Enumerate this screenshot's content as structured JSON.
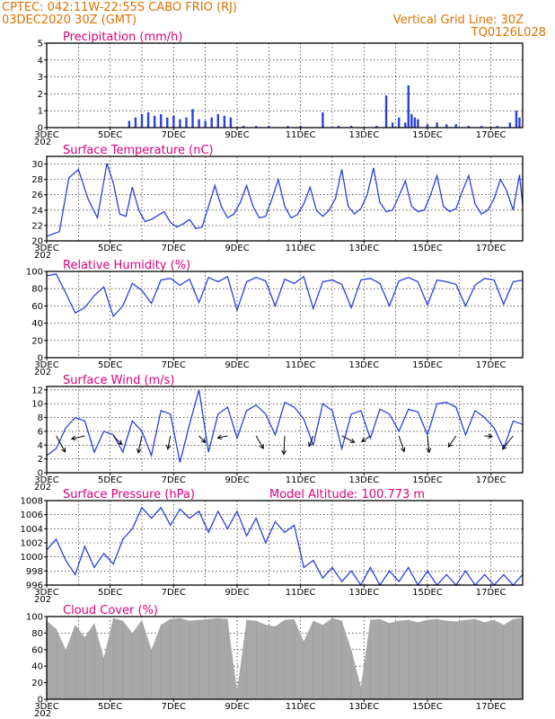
{
  "header": {
    "line1": "CPTEC:   042:11W-22:55S   CABO FRIO (RJ)",
    "line2": "03DEC2020 30Z (GMT)",
    "grid_note": "Vertical Grid Line: 30Z",
    "code": "TQ0126L028"
  },
  "panels": [
    {
      "id": "precip",
      "title": "Precipitation (mm/h)",
      "yticks": [
        "5",
        "4",
        "3",
        "2",
        "1",
        "0"
      ]
    },
    {
      "id": "temp",
      "title": "Surface Temperature (nC)",
      "yticks": [
        "30",
        "28",
        "26",
        "24",
        "22",
        "20"
      ]
    },
    {
      "id": "rh",
      "title": "Relative Humidity (%)",
      "yticks": [
        "100",
        "80",
        "60",
        "40",
        "20",
        "0"
      ]
    },
    {
      "id": "wind",
      "title": "Surface Wind (m/s)",
      "yticks": [
        "12",
        "10",
        "8",
        "6",
        "4",
        "2",
        "0"
      ]
    },
    {
      "id": "pres",
      "title": "Surface Pressure (hPa)",
      "extra": "Model Altitude: 100.773 m",
      "yticks": [
        "1008",
        "1006",
        "1004",
        "1002",
        "1000",
        "998",
        "996"
      ]
    },
    {
      "id": "cloud",
      "title": "Cloud Cover (%)",
      "yticks": [
        "100",
        "80",
        "60",
        "40",
        "20",
        "0"
      ]
    }
  ],
  "x_tick_labels": [
    "3DEC",
    "5DEC",
    "7DEC",
    "9DEC",
    "11DEC",
    "13DEC",
    "15DEC",
    "17DEC"
  ],
  "x_year_stub": "202",
  "colors": {
    "header": "#e07000",
    "titles": "#e0007a",
    "series": "#2a3fe0",
    "cloud": "#a8a8a8"
  },
  "chart_data": [
    {
      "type": "bar",
      "title": "Precipitation (mm/h)",
      "xlim": [
        "03DEC2020 30Z",
        "18DEC2020"
      ],
      "ylim": [
        0,
        5
      ],
      "grid": "dashed",
      "x": [
        5.6,
        5.8,
        6.0,
        6.2,
        6.4,
        6.6,
        6.8,
        7.0,
        7.2,
        7.4,
        7.6,
        7.8,
        8.0,
        8.2,
        8.4,
        8.6,
        8.8,
        9.2,
        9.6,
        10.0,
        10.6,
        11.0,
        11.7,
        12.2,
        12.6,
        13.4,
        13.7,
        13.9,
        14.1,
        14.3,
        14.4,
        14.5,
        14.6,
        14.7,
        15.0,
        15.3,
        15.6,
        15.9,
        16.3,
        16.7,
        17.2,
        17.6,
        17.8,
        17.9
      ],
      "values": [
        0.4,
        0.6,
        0.8,
        0.9,
        0.7,
        0.8,
        0.6,
        0.7,
        0.5,
        0.6,
        1.1,
        0.5,
        0.4,
        0.6,
        0.8,
        0.7,
        0.6,
        0.1,
        0.1,
        0.1,
        0.1,
        0.1,
        0.9,
        0.1,
        0.1,
        0.1,
        1.9,
        0.3,
        0.6,
        0.3,
        2.5,
        0.8,
        0.6,
        0.5,
        0.2,
        0.3,
        0.2,
        0.2,
        0.1,
        0.1,
        0.1,
        0.3,
        1.0,
        0.6
      ]
    },
    {
      "type": "line",
      "title": "Surface Temperature (nC)",
      "ylim": [
        20,
        31
      ],
      "grid": "dashed",
      "x": [
        3.0,
        3.4,
        3.7,
        4.0,
        4.3,
        4.6,
        4.9,
        5.1,
        5.3,
        5.5,
        5.7,
        5.9,
        6.1,
        6.3,
        6.5,
        6.7,
        6.9,
        7.1,
        7.3,
        7.5,
        7.7,
        7.9,
        8.1,
        8.3,
        8.5,
        8.7,
        8.9,
        9.1,
        9.3,
        9.5,
        9.7,
        9.9,
        10.1,
        10.3,
        10.5,
        10.7,
        10.9,
        11.1,
        11.3,
        11.5,
        11.7,
        11.9,
        12.1,
        12.3,
        12.5,
        12.7,
        12.9,
        13.1,
        13.3,
        13.5,
        13.7,
        13.9,
        14.1,
        14.3,
        14.5,
        14.7,
        14.9,
        15.1,
        15.3,
        15.5,
        15.7,
        15.9,
        16.1,
        16.3,
        16.5,
        16.7,
        16.9,
        17.1,
        17.3,
        17.5,
        17.7,
        17.9,
        18.0
      ],
      "values": [
        20.6,
        21.2,
        28.2,
        29.3,
        25.5,
        23.0,
        30.1,
        27.5,
        23.5,
        23.2,
        27.0,
        24.0,
        22.5,
        22.8,
        23.3,
        23.8,
        22.4,
        21.8,
        22.2,
        22.8,
        21.6,
        21.8,
        24.5,
        27.2,
        24.5,
        23.0,
        23.5,
        25.0,
        27.2,
        24.5,
        23.0,
        23.2,
        25.5,
        28.0,
        24.5,
        23.0,
        23.4,
        24.8,
        27.0,
        24.0,
        23.2,
        24.0,
        25.5,
        29.3,
        24.5,
        23.5,
        24.2,
        26.0,
        29.5,
        25.0,
        23.8,
        24.0,
        25.8,
        27.8,
        24.5,
        23.8,
        24.0,
        26.0,
        28.5,
        24.5,
        23.8,
        24.2,
        26.5,
        28.5,
        24.8,
        23.5,
        24.0,
        25.5,
        28.0,
        26.5,
        24.0,
        28.6,
        24.6
      ]
    },
    {
      "type": "line",
      "title": "Relative Humidity (%)",
      "ylim": [
        0,
        100
      ],
      "grid": "dashed",
      "x": [
        3.0,
        3.3,
        3.6,
        3.9,
        4.2,
        4.5,
        4.8,
        5.1,
        5.4,
        5.7,
        6.0,
        6.3,
        6.6,
        6.9,
        7.2,
        7.5,
        7.8,
        8.1,
        8.4,
        8.7,
        9.0,
        9.3,
        9.6,
        9.9,
        10.2,
        10.5,
        10.8,
        11.1,
        11.4,
        11.7,
        12.0,
        12.3,
        12.6,
        12.9,
        13.2,
        13.5,
        13.8,
        14.1,
        14.4,
        14.7,
        15.0,
        15.3,
        15.6,
        15.9,
        16.2,
        16.5,
        16.8,
        17.1,
        17.4,
        17.7,
        18.0
      ],
      "values": [
        95,
        97,
        75,
        52,
        58,
        72,
        82,
        48,
        60,
        86,
        78,
        63,
        90,
        92,
        84,
        91,
        64,
        93,
        88,
        94,
        55,
        88,
        93,
        89,
        60,
        91,
        86,
        94,
        57,
        88,
        90,
        85,
        58,
        90,
        92,
        86,
        60,
        89,
        93,
        88,
        61,
        90,
        88,
        85,
        60,
        84,
        92,
        90,
        62,
        88,
        90
      ]
    },
    {
      "type": "line",
      "title": "Surface Wind (m/s)",
      "ylim": [
        0,
        12.5
      ],
      "grid": "dashed",
      "x": [
        3.0,
        3.3,
        3.6,
        3.9,
        4.2,
        4.5,
        4.8,
        5.1,
        5.4,
        5.7,
        6.0,
        6.3,
        6.6,
        6.9,
        7.2,
        7.5,
        7.8,
        8.1,
        8.4,
        8.7,
        9.0,
        9.3,
        9.6,
        9.9,
        10.2,
        10.5,
        10.8,
        11.1,
        11.4,
        11.7,
        12.0,
        12.3,
        12.6,
        12.9,
        13.2,
        13.5,
        13.8,
        14.1,
        14.4,
        14.7,
        15.0,
        15.3,
        15.6,
        15.9,
        16.2,
        16.5,
        16.8,
        17.1,
        17.4,
        17.7,
        18.0
      ],
      "values": [
        2.5,
        3.5,
        6.5,
        8.0,
        7.5,
        3.0,
        6.0,
        5.5,
        3.0,
        7.5,
        6.0,
        2.5,
        9.0,
        8.5,
        1.5,
        7.0,
        12.0,
        3.0,
        8.5,
        9.5,
        5.0,
        9.0,
        9.8,
        8.5,
        5.5,
        10.2,
        9.5,
        7.8,
        4.0,
        10.0,
        9.0,
        3.5,
        8.5,
        9.0,
        5.0,
        9.2,
        8.5,
        6.0,
        9.2,
        8.8,
        5.5,
        10.0,
        10.2,
        9.5,
        5.5,
        9.0,
        8.0,
        6.5,
        3.5,
        7.5,
        7.0
      ],
      "arrows_note": "wind direction barbs drawn along the series"
    },
    {
      "type": "line",
      "title": "Surface Pressure (hPa)",
      "ylim": [
        996,
        1008
      ],
      "grid": "dashed",
      "x": [
        3.0,
        3.3,
        3.6,
        3.9,
        4.2,
        4.5,
        4.8,
        5.1,
        5.4,
        5.7,
        6.0,
        6.3,
        6.6,
        6.9,
        7.2,
        7.5,
        7.8,
        8.1,
        8.4,
        8.7,
        9.0,
        9.3,
        9.6,
        9.9,
        10.2,
        10.5,
        10.8,
        11.1,
        11.4,
        11.7,
        12.0,
        12.3,
        12.6,
        12.9,
        13.2,
        13.5,
        13.8,
        14.1,
        14.4,
        14.7,
        15.0,
        15.3,
        15.6,
        15.9,
        16.2,
        16.5,
        16.8,
        17.1,
        17.4,
        17.7,
        18.0
      ],
      "values": [
        1001.0,
        1002.5,
        999.5,
        997.5,
        1001.5,
        998.5,
        1000.5,
        999.0,
        1002.5,
        1004.0,
        1007.0,
        1005.5,
        1007.0,
        1004.5,
        1006.8,
        1005.5,
        1006.5,
        1003.5,
        1006.5,
        1004.0,
        1006.5,
        1003.0,
        1005.5,
        1002.0,
        1005.0,
        1003.5,
        1004.5,
        998.5,
        999.5,
        997.0,
        998.5,
        996.5,
        998.0,
        996.0,
        998.5,
        996.0,
        998.0,
        996.5,
        998.5,
        996.0,
        998.0,
        996.0,
        997.5,
        996.0,
        998.0,
        996.0,
        997.5,
        996.0,
        997.5,
        996.0,
        997.5
      ]
    },
    {
      "type": "area",
      "title": "Cloud Cover (%)",
      "ylim": [
        0,
        100
      ],
      "grid": "dashed",
      "x": [
        3.0,
        3.3,
        3.6,
        3.9,
        4.2,
        4.5,
        4.8,
        5.1,
        5.4,
        5.7,
        6.0,
        6.3,
        6.6,
        6.9,
        7.2,
        7.5,
        7.8,
        8.1,
        8.4,
        8.7,
        9.0,
        9.3,
        9.6,
        9.9,
        10.2,
        10.5,
        10.8,
        11.1,
        11.4,
        11.7,
        12.0,
        12.3,
        12.6,
        12.9,
        13.2,
        13.5,
        13.8,
        14.1,
        14.4,
        14.7,
        15.0,
        15.3,
        15.6,
        15.9,
        16.2,
        16.5,
        16.8,
        17.1,
        17.4,
        17.7,
        18.0
      ],
      "values": [
        95,
        85,
        60,
        90,
        75,
        92,
        50,
        98,
        95,
        80,
        96,
        60,
        90,
        97,
        98,
        95,
        96,
        97,
        98,
        97,
        10,
        96,
        95,
        90,
        88,
        96,
        97,
        70,
        95,
        90,
        98,
        95,
        60,
        15,
        96,
        97,
        92,
        95,
        96,
        93,
        96,
        97,
        95,
        94,
        96,
        97,
        93,
        96,
        90,
        97,
        98
      ]
    }
  ]
}
